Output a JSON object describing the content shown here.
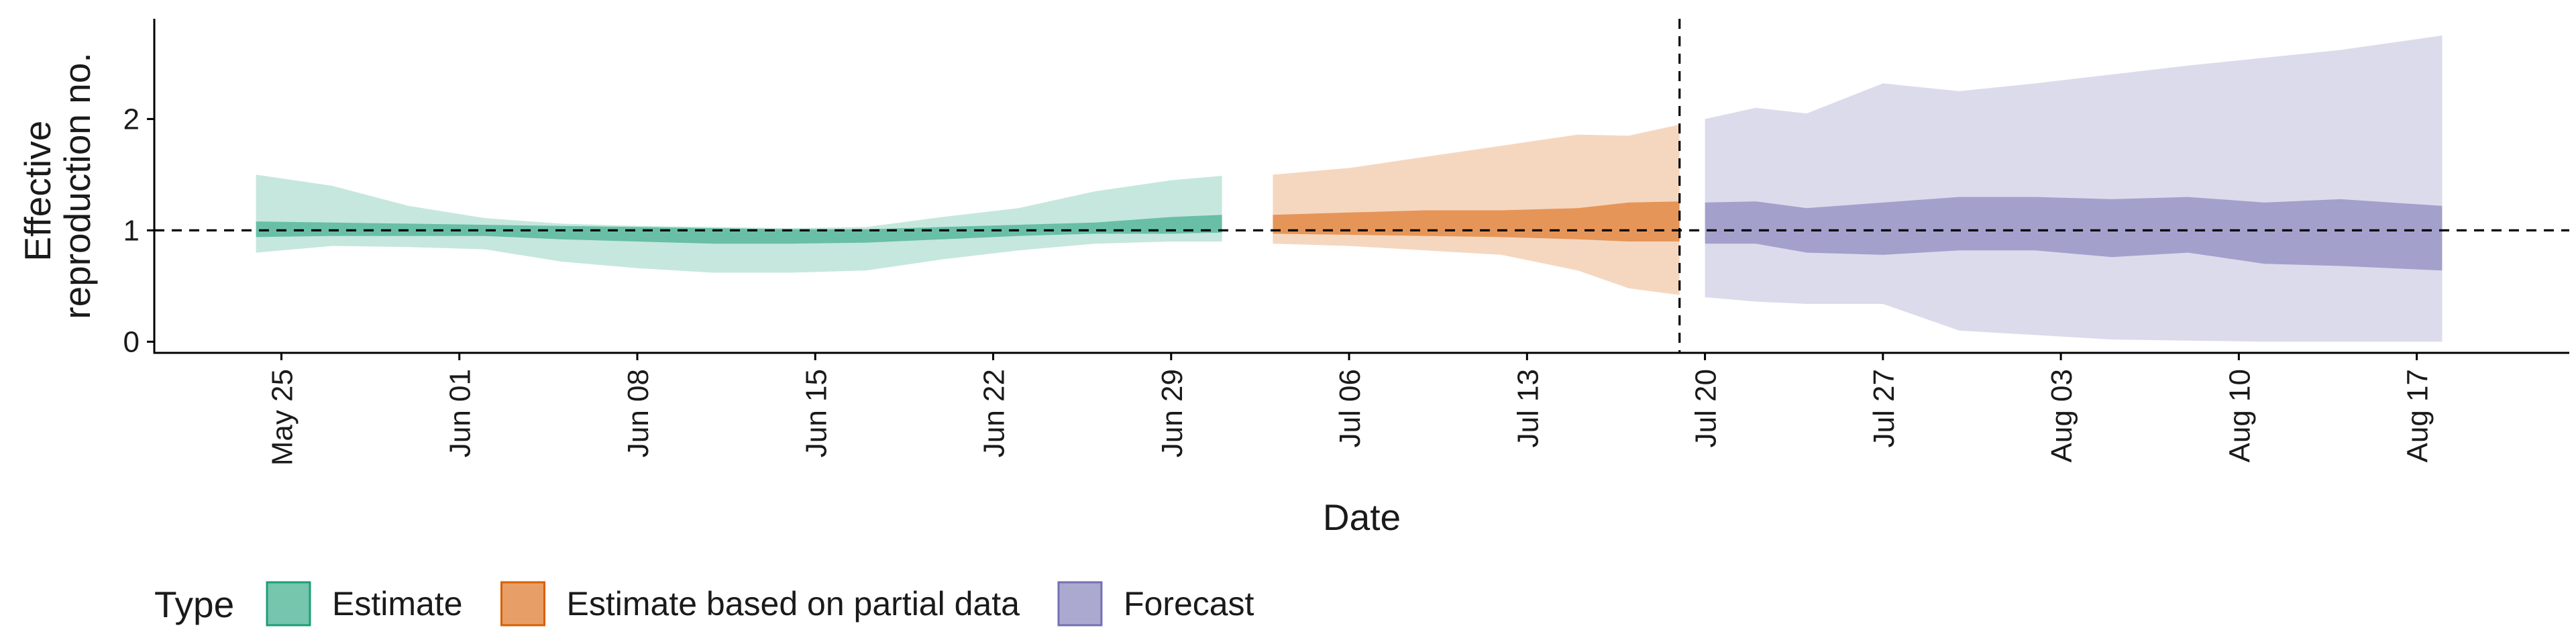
{
  "chart_data": {
    "type": "area",
    "title": "",
    "xlabel": "Date",
    "ylabel_lines": [
      "Effective",
      "reproduction no."
    ],
    "x_range": [
      "2020-05-20",
      "2020-08-23"
    ],
    "ylim": [
      -0.1,
      2.9
    ],
    "y_ticks": [
      0,
      1,
      2
    ],
    "x_ticks": [
      {
        "date": "2020-05-25",
        "label": "May 25"
      },
      {
        "date": "2020-06-01",
        "label": "Jun 01"
      },
      {
        "date": "2020-06-08",
        "label": "Jun 08"
      },
      {
        "date": "2020-06-15",
        "label": "Jun 15"
      },
      {
        "date": "2020-06-22",
        "label": "Jun 22"
      },
      {
        "date": "2020-06-29",
        "label": "Jun 29"
      },
      {
        "date": "2020-07-06",
        "label": "Jul 06"
      },
      {
        "date": "2020-07-13",
        "label": "Jul 13"
      },
      {
        "date": "2020-07-20",
        "label": "Jul 20"
      },
      {
        "date": "2020-07-27",
        "label": "Jul 27"
      },
      {
        "date": "2020-08-03",
        "label": "Aug 03"
      },
      {
        "date": "2020-08-10",
        "label": "Aug 10"
      },
      {
        "date": "2020-08-17",
        "label": "Aug 17"
      }
    ],
    "reference_line_y": 1,
    "forecast_start": "2020-07-19",
    "grid": false,
    "legend_title": "Type",
    "legend_position": "bottom",
    "series": [
      {
        "name": "Estimate",
        "color": "#1b9e77",
        "points": [
          {
            "date": "2020-05-24",
            "lo90": 0.8,
            "lo50": 0.94,
            "hi50": 1.08,
            "hi90": 1.5
          },
          {
            "date": "2020-05-27",
            "lo90": 0.86,
            "lo50": 0.95,
            "hi50": 1.07,
            "hi90": 1.4
          },
          {
            "date": "2020-05-30",
            "lo90": 0.85,
            "lo50": 0.95,
            "hi50": 1.06,
            "hi90": 1.22
          },
          {
            "date": "2020-06-02",
            "lo90": 0.83,
            "lo50": 0.95,
            "hi50": 1.05,
            "hi90": 1.11
          },
          {
            "date": "2020-06-05",
            "lo90": 0.72,
            "lo50": 0.92,
            "hi50": 1.04,
            "hi90": 1.06
          },
          {
            "date": "2020-06-08",
            "lo90": 0.66,
            "lo50": 0.9,
            "hi50": 1.03,
            "hi90": 1.04
          },
          {
            "date": "2020-06-11",
            "lo90": 0.62,
            "lo50": 0.88,
            "hi50": 1.02,
            "hi90": 1.03
          },
          {
            "date": "2020-06-14",
            "lo90": 0.62,
            "lo50": 0.88,
            "hi50": 1.01,
            "hi90": 1.02
          },
          {
            "date": "2020-06-17",
            "lo90": 0.64,
            "lo50": 0.89,
            "hi50": 1.01,
            "hi90": 1.03
          },
          {
            "date": "2020-06-20",
            "lo90": 0.74,
            "lo50": 0.92,
            "hi50": 1.03,
            "hi90": 1.12
          },
          {
            "date": "2020-06-23",
            "lo90": 0.82,
            "lo50": 0.95,
            "hi50": 1.05,
            "hi90": 1.2
          },
          {
            "date": "2020-06-26",
            "lo90": 0.88,
            "lo50": 0.97,
            "hi50": 1.07,
            "hi90": 1.35
          },
          {
            "date": "2020-06-29",
            "lo90": 0.9,
            "lo50": 0.97,
            "hi50": 1.12,
            "hi90": 1.45
          },
          {
            "date": "2020-07-01",
            "lo90": 0.9,
            "lo50": 0.98,
            "hi50": 1.14,
            "hi90": 1.49
          }
        ]
      },
      {
        "name": "Estimate based on partial data",
        "color": "#d95f02",
        "points": [
          {
            "date": "2020-07-03",
            "lo90": 0.88,
            "lo50": 0.97,
            "hi50": 1.14,
            "hi90": 1.5
          },
          {
            "date": "2020-07-06",
            "lo90": 0.86,
            "lo50": 0.96,
            "hi50": 1.16,
            "hi90": 1.56
          },
          {
            "date": "2020-07-09",
            "lo90": 0.82,
            "lo50": 0.95,
            "hi50": 1.18,
            "hi90": 1.66
          },
          {
            "date": "2020-07-12",
            "lo90": 0.78,
            "lo50": 0.94,
            "hi50": 1.18,
            "hi90": 1.76
          },
          {
            "date": "2020-07-15",
            "lo90": 0.64,
            "lo50": 0.92,
            "hi50": 1.2,
            "hi90": 1.86
          },
          {
            "date": "2020-07-17",
            "lo90": 0.48,
            "lo50": 0.9,
            "hi50": 1.25,
            "hi90": 1.85
          },
          {
            "date": "2020-07-19",
            "lo90": 0.42,
            "lo50": 0.9,
            "hi50": 1.26,
            "hi90": 1.95
          }
        ]
      },
      {
        "name": "Forecast",
        "color": "#7570b3",
        "points": [
          {
            "date": "2020-07-20",
            "lo90": 0.4,
            "lo50": 0.88,
            "hi50": 1.25,
            "hi90": 2.0
          },
          {
            "date": "2020-07-22",
            "lo90": 0.36,
            "lo50": 0.88,
            "hi50": 1.26,
            "hi90": 2.1
          },
          {
            "date": "2020-07-24",
            "lo90": 0.34,
            "lo50": 0.8,
            "hi50": 1.2,
            "hi90": 2.05
          },
          {
            "date": "2020-07-27",
            "lo90": 0.34,
            "lo50": 0.78,
            "hi50": 1.25,
            "hi90": 2.32
          },
          {
            "date": "2020-07-30",
            "lo90": 0.1,
            "lo50": 0.82,
            "hi50": 1.3,
            "hi90": 2.25
          },
          {
            "date": "2020-08-02",
            "lo90": 0.06,
            "lo50": 0.82,
            "hi50": 1.3,
            "hi90": 2.32
          },
          {
            "date": "2020-08-05",
            "lo90": 0.02,
            "lo50": 0.76,
            "hi50": 1.28,
            "hi90": 2.4
          },
          {
            "date": "2020-08-08",
            "lo90": 0.01,
            "lo50": 0.8,
            "hi50": 1.3,
            "hi90": 2.48
          },
          {
            "date": "2020-08-11",
            "lo90": 0.0,
            "lo50": 0.7,
            "hi50": 1.25,
            "hi90": 2.55
          },
          {
            "date": "2020-08-14",
            "lo90": 0.0,
            "lo50": 0.68,
            "hi50": 1.28,
            "hi90": 2.62
          },
          {
            "date": "2020-08-18",
            "lo90": 0.0,
            "lo50": 0.64,
            "hi50": 1.22,
            "hi90": 2.75
          }
        ]
      }
    ]
  }
}
